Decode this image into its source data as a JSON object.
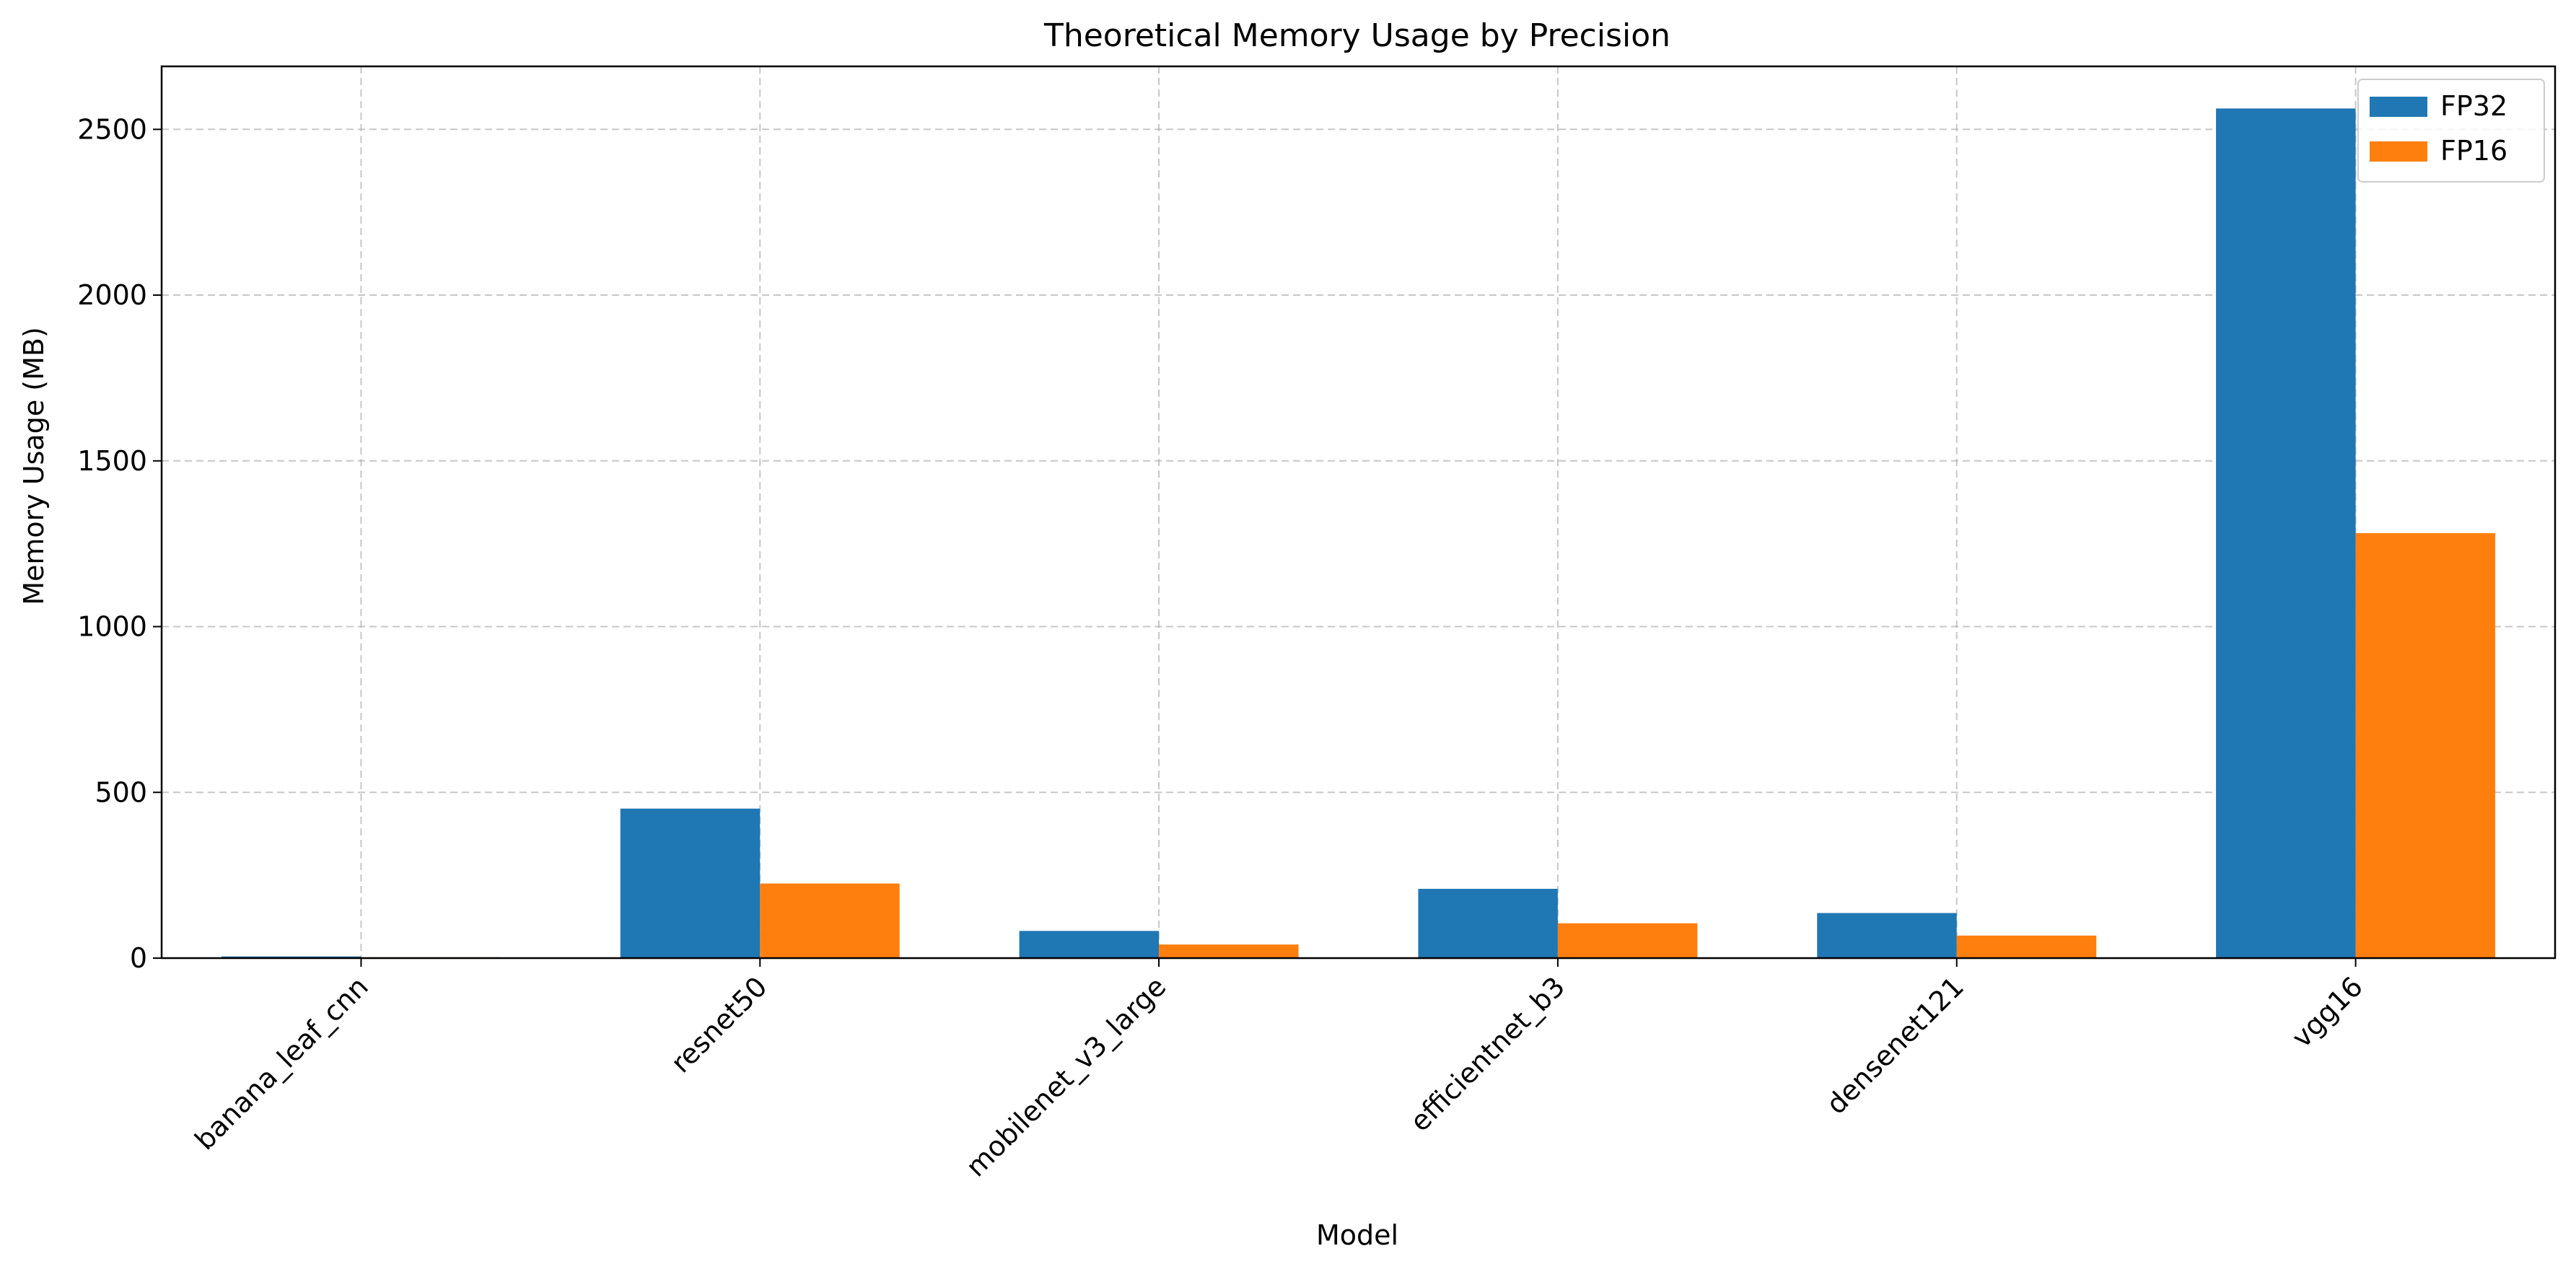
{
  "chart_data": {
    "type": "bar",
    "title": "Theoretical Memory Usage by Precision",
    "xlabel": "Model",
    "ylabel": "Memory Usage (MB)",
    "categories": [
      "banana_leaf_cnn",
      "resnet50",
      "mobilenet_v3_large",
      "efficientnet_b3",
      "densenet121",
      "vgg16"
    ],
    "series": [
      {
        "name": "FP32",
        "color": "#1f77b4",
        "values": [
          5,
          451,
          82,
          209,
          136,
          2563
        ]
      },
      {
        "name": "FP16",
        "color": "#ff7f0e",
        "values": [
          2.5,
          225,
          41,
          105,
          68,
          1282
        ]
      }
    ],
    "ylim": [
      0,
      2690
    ],
    "yticks": [
      0,
      500,
      1000,
      1500,
      2000,
      2500
    ],
    "grid": true,
    "legend_position": "top-right"
  }
}
